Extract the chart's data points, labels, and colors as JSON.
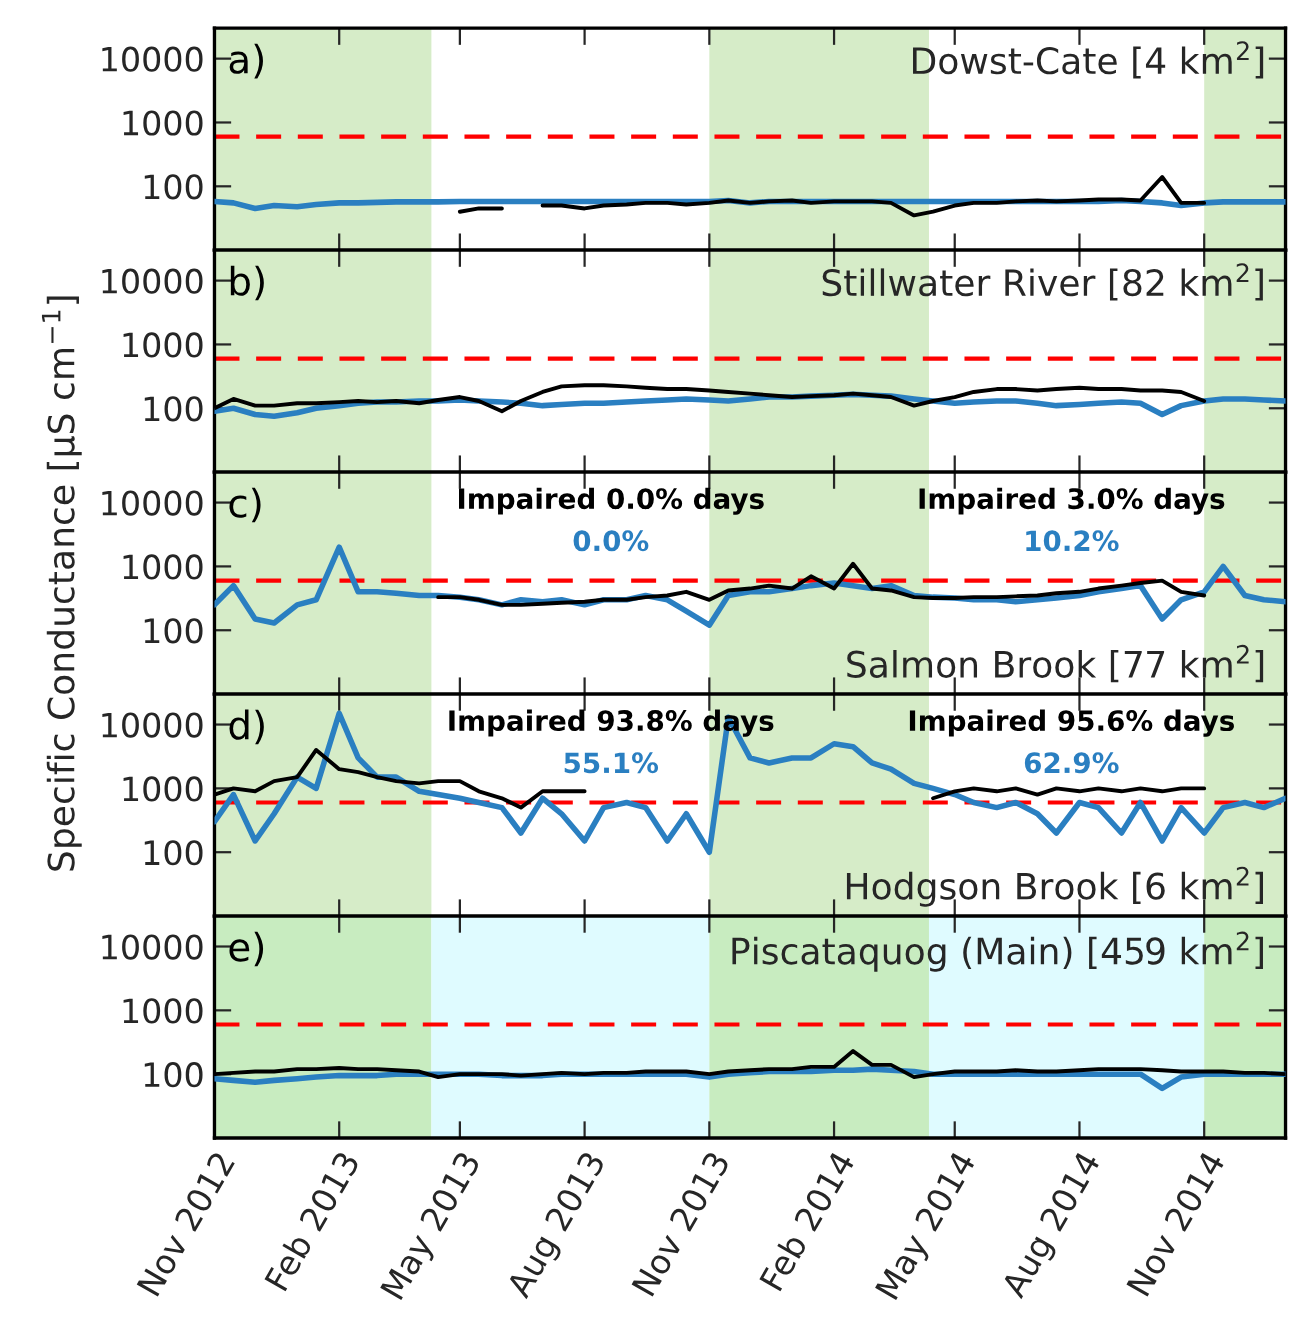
{
  "chart_data": [
    {
      "type": "line",
      "title": "Dowst-Cate [4 km$^{2}$]",
      "annotations": [
        "a)"
      ],
      "log": "y",
      "grid": false,
      "tick_labels": "y",
      "x": [
        "2012-11-01",
        "2012-11-15",
        "2012-12-01",
        "2012-12-15",
        "2013-01-01",
        "2013-01-15",
        "2013-02-01",
        "2013-02-15",
        "2013-03-01",
        "2013-03-15",
        "2013-04-01",
        "2013-04-15",
        "2013-05-01",
        "2013-05-15",
        "2013-06-01",
        "2013-06-15",
        "2013-07-01",
        "2013-07-15",
        "2013-08-01",
        "2013-08-15",
        "2013-09-01",
        "2013-09-15",
        "2013-10-01",
        "2013-10-15",
        "2013-11-01",
        "2013-11-15",
        "2013-12-01",
        "2013-12-15",
        "2014-01-01",
        "2014-01-15",
        "2014-02-01",
        "2014-02-15",
        "2014-03-01",
        "2014-03-15",
        "2014-04-01",
        "2014-04-15",
        "2014-05-01",
        "2014-05-15",
        "2014-06-01",
        "2014-06-15",
        "2014-07-01",
        "2014-07-15",
        "2014-08-01",
        "2014-08-15",
        "2014-09-01",
        "2014-09-15",
        "2014-10-01",
        "2014-10-15",
        "2014-11-01",
        "2014-11-15",
        "2014-12-01",
        "2014-12-15",
        "2014-12-31"
      ],
      "series": [
        {
          "color": "#2a7fc1",
          "values": [
            58,
            55,
            45,
            50,
            48,
            52,
            55,
            55,
            56,
            57,
            57,
            57,
            58,
            58,
            58,
            58,
            58,
            58,
            58,
            58,
            58,
            58,
            58,
            58,
            58,
            60,
            55,
            58,
            58,
            58,
            58,
            58,
            58,
            58,
            58,
            58,
            58,
            58,
            58,
            58,
            58,
            58,
            58,
            58,
            60,
            58,
            55,
            50,
            55,
            57,
            57,
            57,
            57
          ]
        },
        {
          "color": "#000000",
          "values": [
            null,
            null,
            null,
            null,
            null,
            null,
            null,
            null,
            null,
            null,
            null,
            null,
            40,
            45,
            45,
            null,
            50,
            50,
            45,
            50,
            52,
            55,
            55,
            52,
            55,
            60,
            55,
            58,
            60,
            55,
            58,
            58,
            58,
            55,
            35,
            40,
            50,
            55,
            55,
            58,
            60,
            58,
            60,
            62,
            62,
            60,
            140,
            55,
            55,
            null,
            null,
            null,
            null
          ]
        }
      ],
      "xlim": [
        "2012-11-01",
        "2014-12-31"
      ],
      "xticks": [
        {
          "value": "2012-11-01",
          "label": null
        },
        {
          "value": "2013-02-01",
          "label": null
        },
        {
          "value": "2013-05-01",
          "label": null
        },
        {
          "value": "2013-08-01",
          "label": null
        },
        {
          "value": "2013-11-01",
          "label": null
        },
        {
          "value": "2014-02-01",
          "label": null
        },
        {
          "value": "2014-05-01",
          "label": null
        },
        {
          "value": "2014-08-01",
          "label": null
        },
        {
          "value": "2014-11-01",
          "label": null
        }
      ],
      "ylim": [
        10,
        30000
      ],
      "yticks": [
        100,
        1000,
        10000
      ],
      "ref_lines": [
        {
          "axis": "y",
          "value": 600,
          "color": "#ff0000",
          "line_style": "dashed"
        }
      ],
      "bands": [
        {
          "axis": "x",
          "from": "2012-11-01",
          "to": "2013-04-10",
          "color": "#d6ecc8"
        },
        {
          "axis": "x",
          "from": "2013-11-01",
          "to": "2014-04-12",
          "color": "#d6ecc8"
        },
        {
          "axis": "x",
          "from": "2014-11-01",
          "to": "2014-12-31",
          "color": "#d6ecc8"
        }
      ]
    },
    {
      "type": "line",
      "title": "Stillwater River [82 km$^{2}$]",
      "annotations": [
        "b)"
      ],
      "log": "y",
      "grid": false,
      "tick_labels": "y",
      "x": [
        "2012-11-01",
        "2012-11-15",
        "2012-12-01",
        "2012-12-15",
        "2013-01-01",
        "2013-01-15",
        "2013-02-01",
        "2013-02-15",
        "2013-03-01",
        "2013-03-15",
        "2013-04-01",
        "2013-04-15",
        "2013-05-01",
        "2013-05-15",
        "2013-06-01",
        "2013-06-15",
        "2013-07-01",
        "2013-07-15",
        "2013-08-01",
        "2013-08-15",
        "2013-09-01",
        "2013-09-15",
        "2013-10-01",
        "2013-10-15",
        "2013-11-01",
        "2013-11-15",
        "2013-12-01",
        "2013-12-15",
        "2014-01-01",
        "2014-01-15",
        "2014-02-01",
        "2014-02-15",
        "2014-03-01",
        "2014-03-15",
        "2014-04-01",
        "2014-04-15",
        "2014-05-01",
        "2014-05-15",
        "2014-06-01",
        "2014-06-15",
        "2014-07-01",
        "2014-07-15",
        "2014-08-01",
        "2014-08-15",
        "2014-09-01",
        "2014-09-15",
        "2014-10-01",
        "2014-10-15",
        "2014-11-01",
        "2014-11-15",
        "2014-12-01",
        "2014-12-15",
        "2014-12-31"
      ],
      "series": [
        {
          "color": "#2a7fc1",
          "values": [
            90,
            100,
            80,
            75,
            85,
            100,
            110,
            120,
            125,
            125,
            130,
            130,
            135,
            130,
            125,
            120,
            110,
            115,
            120,
            120,
            125,
            130,
            135,
            140,
            135,
            130,
            140,
            150,
            150,
            155,
            160,
            165,
            160,
            155,
            140,
            130,
            120,
            125,
            130,
            130,
            120,
            110,
            115,
            120,
            125,
            120,
            80,
            110,
            130,
            140,
            140,
            135,
            130
          ]
        },
        {
          "color": "#000000",
          "values": [
            100,
            140,
            110,
            110,
            120,
            120,
            125,
            130,
            125,
            130,
            120,
            135,
            150,
            130,
            90,
            130,
            180,
            220,
            230,
            230,
            220,
            210,
            200,
            200,
            190,
            180,
            170,
            160,
            150,
            155,
            160,
            170,
            160,
            150,
            110,
            130,
            150,
            180,
            200,
            200,
            190,
            200,
            210,
            200,
            200,
            190,
            190,
            180,
            130,
            null,
            null,
            null,
            null
          ]
        }
      ],
      "xlim": [
        "2012-11-01",
        "2014-12-31"
      ],
      "xticks": [
        {
          "value": "2012-11-01",
          "label": null
        },
        {
          "value": "2013-02-01",
          "label": null
        },
        {
          "value": "2013-05-01",
          "label": null
        },
        {
          "value": "2013-08-01",
          "label": null
        },
        {
          "value": "2013-11-01",
          "label": null
        },
        {
          "value": "2014-02-01",
          "label": null
        },
        {
          "value": "2014-05-01",
          "label": null
        },
        {
          "value": "2014-08-01",
          "label": null
        },
        {
          "value": "2014-11-01",
          "label": null
        }
      ],
      "ylim": [
        10,
        30000
      ],
      "yticks": [
        100,
        1000,
        10000
      ],
      "ref_lines": [
        {
          "axis": "y",
          "value": 600,
          "color": "#ff0000",
          "line_style": "dashed"
        }
      ],
      "bands": [
        {
          "axis": "x",
          "from": "2012-11-01",
          "to": "2013-04-10",
          "color": "#d6ecc8"
        },
        {
          "axis": "x",
          "from": "2013-11-01",
          "to": "2014-04-12",
          "color": "#d6ecc8"
        },
        {
          "axis": "x",
          "from": "2014-11-01",
          "to": "2014-12-31",
          "color": "#d6ecc8"
        }
      ]
    },
    {
      "type": "line",
      "title": "Salmon Brook [77 km$^{2}$]",
      "ylabel": "Specific Conductance [μS cm$^{−1}$]",
      "annotations": [
        "c)",
        "Impaired 0.0% days",
        "0.0%",
        "Impaired 3.0% days",
        "10.2%"
      ],
      "log": "y",
      "grid": false,
      "tick_labels": "y",
      "x": [
        "2012-11-01",
        "2012-11-15",
        "2012-12-01",
        "2012-12-15",
        "2013-01-01",
        "2013-01-15",
        "2013-02-01",
        "2013-02-15",
        "2013-03-01",
        "2013-03-15",
        "2013-04-01",
        "2013-04-15",
        "2013-05-01",
        "2013-05-15",
        "2013-06-01",
        "2013-06-15",
        "2013-07-01",
        "2013-07-15",
        "2013-08-01",
        "2013-08-15",
        "2013-09-01",
        "2013-09-15",
        "2013-10-01",
        "2013-10-15",
        "2013-11-01",
        "2013-11-15",
        "2013-12-01",
        "2013-12-15",
        "2014-01-01",
        "2014-01-15",
        "2014-02-01",
        "2014-02-15",
        "2014-03-01",
        "2014-03-15",
        "2014-04-01",
        "2014-04-15",
        "2014-05-01",
        "2014-05-15",
        "2014-06-01",
        "2014-06-15",
        "2014-07-01",
        "2014-07-15",
        "2014-08-01",
        "2014-08-15",
        "2014-09-01",
        "2014-09-15",
        "2014-10-01",
        "2014-10-15",
        "2014-11-01",
        "2014-11-15",
        "2014-12-01",
        "2014-12-15",
        "2014-12-31"
      ],
      "series": [
        {
          "color": "#2a7fc1",
          "values": [
            250,
            500,
            150,
            130,
            250,
            300,
            2000,
            400,
            400,
            380,
            350,
            350,
            330,
            300,
            250,
            300,
            280,
            300,
            250,
            300,
            300,
            350,
            300,
            200,
            120,
            350,
            400,
            400,
            450,
            500,
            550,
            500,
            450,
            500,
            350,
            330,
            320,
            300,
            300,
            280,
            300,
            320,
            350,
            400,
            450,
            500,
            150,
            300,
            400,
            1000,
            350,
            300,
            280
          ]
        },
        {
          "color": "#000000",
          "values": [
            null,
            null,
            null,
            null,
            null,
            null,
            null,
            null,
            null,
            null,
            null,
            330,
            330,
            300,
            250,
            250,
            260,
            270,
            280,
            300,
            300,
            330,
            350,
            400,
            300,
            420,
            450,
            500,
            450,
            700,
            450,
            1100,
            450,
            420,
            330,
            320,
            320,
            330,
            330,
            340,
            350,
            380,
            400,
            450,
            500,
            550,
            600,
            400,
            350,
            null,
            null,
            null,
            null
          ]
        }
      ],
      "xlim": [
        "2012-11-01",
        "2014-12-31"
      ],
      "xticks": [
        {
          "value": "2012-11-01",
          "label": null
        },
        {
          "value": "2013-02-01",
          "label": null
        },
        {
          "value": "2013-05-01",
          "label": null
        },
        {
          "value": "2013-08-01",
          "label": null
        },
        {
          "value": "2013-11-01",
          "label": null
        },
        {
          "value": "2014-02-01",
          "label": null
        },
        {
          "value": "2014-05-01",
          "label": null
        },
        {
          "value": "2014-08-01",
          "label": null
        },
        {
          "value": "2014-11-01",
          "label": null
        }
      ],
      "ylim": [
        10,
        30000
      ],
      "yticks": [
        100,
        1000,
        10000
      ],
      "ref_lines": [
        {
          "axis": "y",
          "value": 600,
          "color": "#ff0000",
          "line_style": "dashed"
        }
      ],
      "bands": [
        {
          "axis": "x",
          "from": "2012-11-01",
          "to": "2013-04-10",
          "color": "#d6ecc8"
        },
        {
          "axis": "x",
          "from": "2013-11-01",
          "to": "2014-04-12",
          "color": "#d6ecc8"
        },
        {
          "axis": "x",
          "from": "2014-11-01",
          "to": "2014-12-31",
          "color": "#d6ecc8"
        }
      ]
    },
    {
      "type": "line",
      "title": "Hodgson Brook [6 km$^{2}$]",
      "annotations": [
        "d)",
        "Impaired 93.8% days",
        "55.1%",
        "Impaired 95.6% days",
        "62.9%"
      ],
      "log": "y",
      "grid": false,
      "tick_labels": "y",
      "x": [
        "2012-11-01",
        "2012-11-15",
        "2012-12-01",
        "2012-12-15",
        "2013-01-01",
        "2013-01-15",
        "2013-02-01",
        "2013-02-15",
        "2013-03-01",
        "2013-03-15",
        "2013-04-01",
        "2013-04-15",
        "2013-05-01",
        "2013-05-15",
        "2013-06-01",
        "2013-06-15",
        "2013-07-01",
        "2013-07-15",
        "2013-08-01",
        "2013-08-15",
        "2013-09-01",
        "2013-09-15",
        "2013-10-01",
        "2013-10-15",
        "2013-11-01",
        "2013-11-15",
        "2013-12-01",
        "2013-12-15",
        "2014-01-01",
        "2014-01-15",
        "2014-02-01",
        "2014-02-15",
        "2014-03-01",
        "2014-03-15",
        "2014-04-01",
        "2014-04-15",
        "2014-05-01",
        "2014-05-15",
        "2014-06-01",
        "2014-06-15",
        "2014-07-01",
        "2014-07-15",
        "2014-08-01",
        "2014-08-15",
        "2014-09-01",
        "2014-09-15",
        "2014-10-01",
        "2014-10-15",
        "2014-11-01",
        "2014-11-15",
        "2014-12-01",
        "2014-12-15",
        "2014-12-31"
      ],
      "series": [
        {
          "color": "#2a7fc1",
          "values": [
            300,
            800,
            150,
            400,
            1500,
            1000,
            15000,
            3000,
            1500,
            1500,
            900,
            800,
            700,
            600,
            500,
            200,
            700,
            400,
            150,
            500,
            600,
            500,
            150,
            400,
            100,
            13000,
            3000,
            2500,
            3000,
            3000,
            5000,
            4500,
            2500,
            2000,
            1200,
            1000,
            800,
            600,
            500,
            600,
            400,
            200,
            600,
            500,
            200,
            600,
            150,
            500,
            200,
            500,
            600,
            500,
            700
          ]
        },
        {
          "color": "#000000",
          "values": [
            800,
            1000,
            900,
            1300,
            1500,
            4000,
            2000,
            1800,
            1500,
            1300,
            1200,
            1300,
            1300,
            900,
            700,
            500,
            900,
            900,
            900,
            null,
            null,
            null,
            null,
            null,
            null,
            null,
            null,
            null,
            null,
            null,
            null,
            null,
            null,
            null,
            null,
            700,
            900,
            1000,
            900,
            1000,
            800,
            1000,
            900,
            1000,
            900,
            1000,
            900,
            1000,
            1000,
            null,
            null,
            null,
            null
          ]
        }
      ],
      "xlim": [
        "2012-11-01",
        "2014-12-31"
      ],
      "xticks": [
        {
          "value": "2012-11-01",
          "label": null
        },
        {
          "value": "2013-02-01",
          "label": null
        },
        {
          "value": "2013-05-01",
          "label": null
        },
        {
          "value": "2013-08-01",
          "label": null
        },
        {
          "value": "2013-11-01",
          "label": null
        },
        {
          "value": "2014-02-01",
          "label": null
        },
        {
          "value": "2014-05-01",
          "label": null
        },
        {
          "value": "2014-08-01",
          "label": null
        },
        {
          "value": "2014-11-01",
          "label": null
        }
      ],
      "ylim": [
        10,
        30000
      ],
      "yticks": [
        100,
        1000,
        10000
      ],
      "ref_lines": [
        {
          "axis": "y",
          "value": 600,
          "color": "#ff0000",
          "line_style": "dashed"
        }
      ],
      "bands": [
        {
          "axis": "x",
          "from": "2012-11-01",
          "to": "2013-04-10",
          "color": "#d6ecc8"
        },
        {
          "axis": "x",
          "from": "2013-11-01",
          "to": "2014-04-12",
          "color": "#d6ecc8"
        },
        {
          "axis": "x",
          "from": "2014-11-01",
          "to": "2014-12-31",
          "color": "#d6ecc8"
        }
      ]
    },
    {
      "type": "line",
      "title": "Piscataquog (Main) [459 km$^{2}$]",
      "annotations": [
        "e)"
      ],
      "log": "y",
      "grid": false,
      "x": [
        "2012-11-01",
        "2012-11-15",
        "2012-12-01",
        "2012-12-15",
        "2013-01-01",
        "2013-01-15",
        "2013-02-01",
        "2013-02-15",
        "2013-03-01",
        "2013-03-15",
        "2013-04-01",
        "2013-04-15",
        "2013-05-01",
        "2013-05-15",
        "2013-06-01",
        "2013-06-15",
        "2013-07-01",
        "2013-07-15",
        "2013-08-01",
        "2013-08-15",
        "2013-09-01",
        "2013-09-15",
        "2013-10-01",
        "2013-10-15",
        "2013-11-01",
        "2013-11-15",
        "2013-12-01",
        "2013-12-15",
        "2014-01-01",
        "2014-01-15",
        "2014-02-01",
        "2014-02-15",
        "2014-03-01",
        "2014-03-15",
        "2014-04-01",
        "2014-04-15",
        "2014-05-01",
        "2014-05-15",
        "2014-06-01",
        "2014-06-15",
        "2014-07-01",
        "2014-07-15",
        "2014-08-01",
        "2014-08-15",
        "2014-09-01",
        "2014-09-15",
        "2014-10-01",
        "2014-10-15",
        "2014-11-01",
        "2014-11-15",
        "2014-12-01",
        "2014-12-15",
        "2014-12-31"
      ],
      "series": [
        {
          "color": "#2a7fc1",
          "values": [
            85,
            80,
            75,
            80,
            85,
            90,
            95,
            95,
            95,
            100,
            100,
            100,
            100,
            100,
            95,
            95,
            95,
            100,
            100,
            100,
            100,
            100,
            100,
            100,
            90,
            100,
            105,
            110,
            110,
            110,
            115,
            115,
            120,
            115,
            110,
            100,
            100,
            100,
            100,
            100,
            100,
            100,
            100,
            100,
            100,
            100,
            60,
            90,
            100,
            100,
            100,
            100,
            100
          ]
        },
        {
          "color": "#000000",
          "values": [
            100,
            105,
            110,
            110,
            120,
            120,
            125,
            120,
            120,
            115,
            110,
            90,
            100,
            100,
            100,
            95,
            100,
            105,
            100,
            105,
            105,
            110,
            110,
            110,
            100,
            110,
            115,
            120,
            120,
            130,
            130,
            230,
            140,
            140,
            90,
            100,
            110,
            110,
            110,
            115,
            110,
            110,
            115,
            120,
            120,
            120,
            115,
            110,
            110,
            110,
            105,
            105,
            100
          ]
        }
      ],
      "xlim": [
        "2012-11-01",
        "2014-12-31"
      ],
      "xticks": [
        {
          "value": "2012-11-01",
          "label": "Nov 2012"
        },
        {
          "value": "2013-02-01",
          "label": "Feb 2013"
        },
        {
          "value": "2013-05-01",
          "label": "May 2013"
        },
        {
          "value": "2013-08-01",
          "label": "Aug 2013"
        },
        {
          "value": "2013-11-01",
          "label": "Nov 2013"
        },
        {
          "value": "2014-02-01",
          "label": "Feb 2014"
        },
        {
          "value": "2014-05-01",
          "label": "May 2014"
        },
        {
          "value": "2014-08-01",
          "label": "Aug 2014"
        },
        {
          "value": "2014-11-01",
          "label": "Nov 2014"
        }
      ],
      "ylim": [
        10,
        30000
      ],
      "yticks": [
        100,
        1000,
        10000
      ],
      "ref_lines": [
        {
          "axis": "y",
          "value": 600,
          "color": "#ff0000",
          "line_style": "dashed"
        }
      ],
      "bands": [
        {
          "axis": "x",
          "from": "2012-11-01",
          "to": "2013-04-10",
          "color": "#c8ecc0"
        },
        {
          "axis": "x",
          "from": "2013-04-10",
          "to": "2013-11-01",
          "color": "#dffbff"
        },
        {
          "axis": "x",
          "from": "2013-11-01",
          "to": "2014-04-12",
          "color": "#c8ecc0"
        },
        {
          "axis": "x",
          "from": "2014-04-12",
          "to": "2014-11-01",
          "color": "#dffbff"
        },
        {
          "axis": "x",
          "from": "2014-11-01",
          "to": "2014-12-31",
          "color": "#c8ecc0"
        }
      ]
    }
  ]
}
